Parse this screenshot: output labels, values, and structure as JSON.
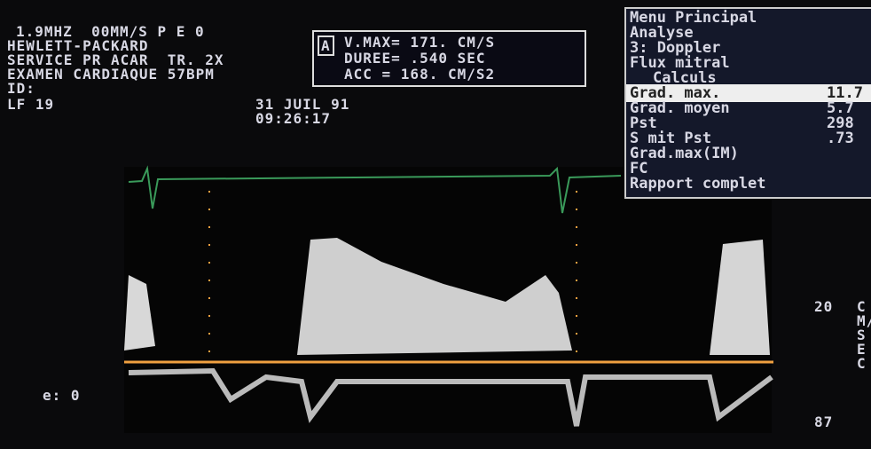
{
  "header": {
    "lines": [
      "1.9MHZ",
      "00MM/S",
      "P E 0",
      "HEWLETT-PACKARD",
      "SERVICE PR ACAR",
      "TR. 2X",
      "EXAMEN CARDIAQUE",
      "57BPM",
      "ID:",
      "LF 19"
    ],
    "date": "31 JUIL 91",
    "time": "09:26:17"
  },
  "measurement": {
    "marker": "A",
    "rows": [
      "V.MAX= 171. CM/S",
      "DUREE= .540 SEC",
      "ACC = 168. CM/S2"
    ]
  },
  "menu": {
    "items": [
      "Menu Principal",
      "Analyse",
      "3: Doppler",
      "Flux mitral",
      "Calculs"
    ],
    "results": [
      [
        "Grad. max.",
        "11.7"
      ],
      [
        "Grad. moyen",
        "5.7"
      ],
      [
        "Pst",
        "298"
      ],
      [
        "S mit Pst",
        ".73"
      ]
    ],
    "more": [
      "Grad.max(IM)",
      "FC",
      "Rapport complet"
    ]
  },
  "scale": {
    "top": "20",
    "unit": "CM/SEC",
    "bottom": "87"
  },
  "gain": "e: 0"
}
